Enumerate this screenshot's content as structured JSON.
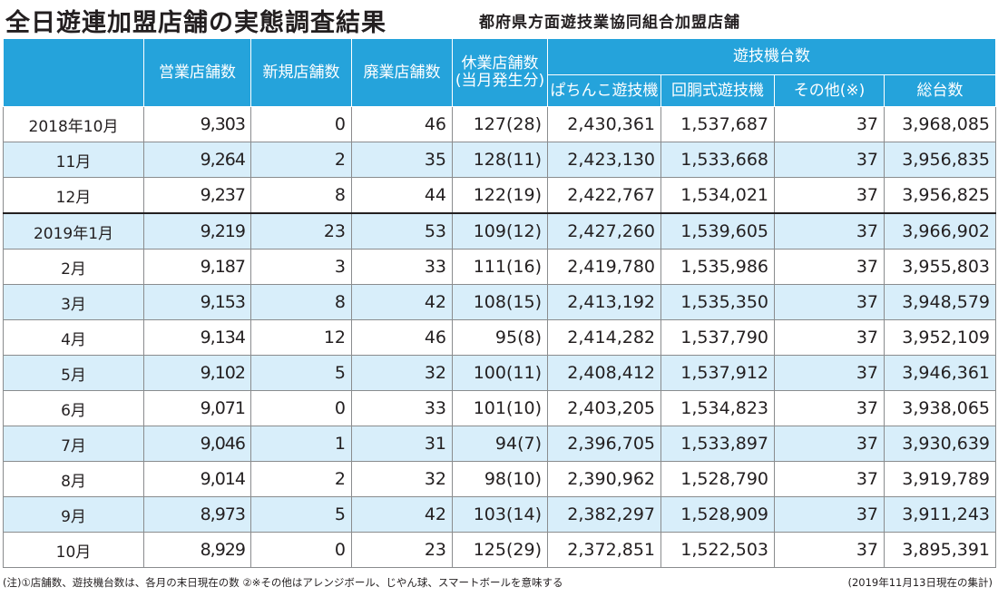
{
  "title": "全日遊連加盟店舗の実態調査結果",
  "subtitle": "都府県方面遊技業協同組合加盟店舗",
  "headers": {
    "stores_open": "営業店舗数",
    "new_stores": "新規店舗数",
    "closed_stores": "廃業店舗数",
    "suspended_line1": "休業店舗数",
    "suspended_line2": "(当月発生分)",
    "machines_group": "遊技機台数",
    "pachinko": "ぱちんこ遊技機",
    "slot": "回胴式遊技機",
    "other": "その他(※)",
    "total": "総台数"
  },
  "rows": [
    {
      "month": "2018年10月",
      "open": "9,303",
      "new": "0",
      "closed": "46",
      "suspended": "127(28)",
      "pachinko": "2,430,361",
      "slot": "1,537,687",
      "other": "37",
      "total": "3,968,085"
    },
    {
      "month": "11月",
      "open": "9,264",
      "new": "2",
      "closed": "35",
      "suspended": "128(11)",
      "pachinko": "2,423,130",
      "slot": "1,533,668",
      "other": "37",
      "total": "3,956,835"
    },
    {
      "month": "12月",
      "open": "9,237",
      "new": "8",
      "closed": "44",
      "suspended": "122(19)",
      "pachinko": "2,422,767",
      "slot": "1,534,021",
      "other": "37",
      "total": "3,956,825"
    },
    {
      "month": "2019年1月",
      "open": "9,219",
      "new": "23",
      "closed": "53",
      "suspended": "109(12)",
      "pachinko": "2,427,260",
      "slot": "1,539,605",
      "other": "37",
      "total": "3,966,902"
    },
    {
      "month": "2月",
      "open": "9,187",
      "new": "3",
      "closed": "33",
      "suspended": "111(16)",
      "pachinko": "2,419,780",
      "slot": "1,535,986",
      "other": "37",
      "total": "3,955,803"
    },
    {
      "month": "3月",
      "open": "9,153",
      "new": "8",
      "closed": "42",
      "suspended": "108(15)",
      "pachinko": "2,413,192",
      "slot": "1,535,350",
      "other": "37",
      "total": "3,948,579"
    },
    {
      "month": "4月",
      "open": "9,134",
      "new": "12",
      "closed": "46",
      "suspended": "95(8)",
      "pachinko": "2,414,282",
      "slot": "1,537,790",
      "other": "37",
      "total": "3,952,109"
    },
    {
      "month": "5月",
      "open": "9,102",
      "new": "5",
      "closed": "32",
      "suspended": "100(11)",
      "pachinko": "2,408,412",
      "slot": "1,537,912",
      "other": "37",
      "total": "3,946,361"
    },
    {
      "month": "6月",
      "open": "9,071",
      "new": "0",
      "closed": "33",
      "suspended": "101(10)",
      "pachinko": "2,403,205",
      "slot": "1,534,823",
      "other": "37",
      "total": "3,938,065"
    },
    {
      "month": "7月",
      "open": "9,046",
      "new": "1",
      "closed": "31",
      "suspended": "94(7)",
      "pachinko": "2,396,705",
      "slot": "1,533,897",
      "other": "37",
      "total": "3,930,639"
    },
    {
      "month": "8月",
      "open": "9,014",
      "new": "2",
      "closed": "32",
      "suspended": "98(10)",
      "pachinko": "2,390,962",
      "slot": "1,528,790",
      "other": "37",
      "total": "3,919,789"
    },
    {
      "month": "9月",
      "open": "8,973",
      "new": "5",
      "closed": "42",
      "suspended": "103(14)",
      "pachinko": "2,382,297",
      "slot": "1,528,909",
      "other": "37",
      "total": "3,911,243"
    },
    {
      "month": "10月",
      "open": "8,929",
      "new": "0",
      "closed": "23",
      "suspended": "125(29)",
      "pachinko": "2,372,851",
      "slot": "1,522,503",
      "other": "37",
      "total": "3,895,391"
    }
  ],
  "footnote": "(注)①店舗数、遊技機台数は、各月の末日現在の数 ②※その他はアレンジボール、じやん球、スマートボールを意味する",
  "footnote_right": "(2019年11月13日現在の集計)",
  "colors": {
    "header_bg": "#25a3db",
    "stripe_bg": "#d8eefa"
  }
}
